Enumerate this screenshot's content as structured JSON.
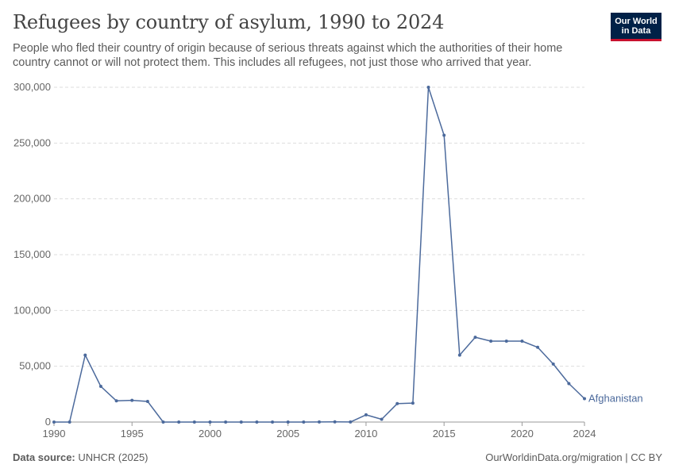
{
  "header": {
    "title": "Refugees by country of asylum, 1990 to 2024",
    "subtitle": "People who fled their country of origin because of serious threats against which the authorities of their home country cannot or will not protect them. This includes all refugees, not just those who arrived that year.",
    "logo_line1": "Our World",
    "logo_line2": "in Data"
  },
  "footer": {
    "source_label": "Data source:",
    "source_value": "UNHCR (2025)",
    "url_license": "OurWorldinData.org/migration | CC BY"
  },
  "colors": {
    "series": "#4c6a9c",
    "grid": "#dddddd",
    "axis_text": "#666666"
  },
  "chart_data": {
    "type": "line",
    "title": "Refugees by country of asylum, 1990 to 2024",
    "xlabel": "",
    "ylabel": "",
    "xlim": [
      1990,
      2024
    ],
    "ylim": [
      0,
      300000
    ],
    "y_ticks": [
      0,
      50000,
      100000,
      150000,
      200000,
      250000,
      300000
    ],
    "y_tick_labels": [
      "0",
      "50,000",
      "100,000",
      "150,000",
      "200,000",
      "250,000",
      "300,000"
    ],
    "x_ticks": [
      1990,
      1995,
      2000,
      2005,
      2010,
      2015,
      2020,
      2024
    ],
    "x_tick_labels": [
      "1990",
      "1995",
      "2000",
      "2005",
      "2010",
      "2015",
      "2020",
      "2024"
    ],
    "grid": "horizontal dashed",
    "series": [
      {
        "name": "Afghanistan",
        "x": [
          1990,
          1991,
          1992,
          1993,
          1994,
          1995,
          1996,
          1997,
          1998,
          1999,
          2000,
          2001,
          2002,
          2003,
          2004,
          2005,
          2006,
          2007,
          2008,
          2009,
          2010,
          2011,
          2012,
          2013,
          2014,
          2015,
          2016,
          2017,
          2018,
          2019,
          2020,
          2021,
          2022,
          2023,
          2024
        ],
        "values": [
          0,
          0,
          60000,
          32000,
          19000,
          19500,
          18500,
          0,
          0,
          0,
          0,
          0,
          0,
          0,
          0,
          0,
          0,
          100,
          200,
          100,
          6500,
          2500,
          16500,
          17000,
          300000,
          257000,
          60000,
          76000,
          72500,
          72500,
          72500,
          67000,
          52000,
          34500,
          21000
        ]
      }
    ]
  }
}
